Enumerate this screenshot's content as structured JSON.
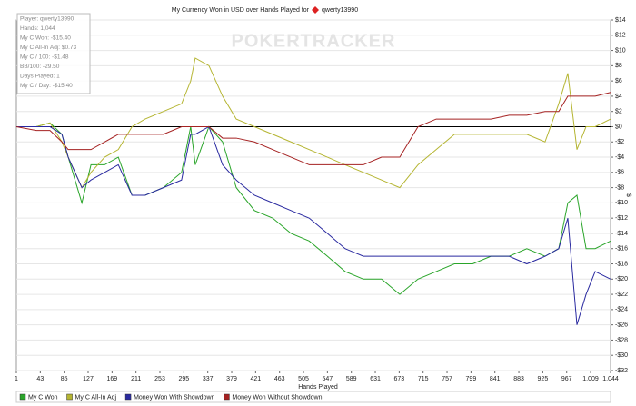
{
  "chart_data": {
    "type": "line",
    "title": "My Currency Won in USD over Hands Played for",
    "title_player": "qwerty13990",
    "watermark": "POKERTRACKER",
    "x_label": "Hands Played",
    "y_label": "$",
    "info_box": [
      "Player: qwerty13990",
      "Hands: 1,044",
      "My C Won: -$15.40",
      "My C All-In Adj: $0.73",
      "My C / 100: -$1.48",
      "BB/100: -29.50",
      "Days Played: 1",
      "My C / Day: -$15.40"
    ],
    "x": [
      1,
      36,
      60,
      81,
      92,
      116,
      132,
      156,
      180,
      204,
      227,
      259,
      291,
      307,
      315,
      339,
      363,
      387,
      419,
      451,
      483,
      515,
      547,
      578,
      610,
      642,
      674,
      706,
      738,
      770,
      802,
      834,
      866,
      897,
      929,
      953,
      969,
      985,
      1001,
      1017,
      1044
    ],
    "series": [
      {
        "name": "My C Won",
        "color": "#2aa52a",
        "values": [
          0,
          0,
          0.5,
          -1,
          -4,
          -10,
          -5,
          -5,
          -4,
          -9,
          -9,
          -8,
          -6,
          0,
          -5,
          0,
          -2,
          -8,
          -11,
          -12,
          -14,
          -15,
          -17,
          -19,
          -20,
          -20,
          -22,
          -20,
          -19,
          -18,
          -18,
          -17,
          -17,
          -16,
          -17,
          -16,
          -10,
          -9,
          -16,
          -16,
          -15
        ]
      },
      {
        "name": "My C All-In Adj",
        "color": "#b5b532",
        "values": [
          0,
          0,
          0.5,
          -2,
          -4,
          -8,
          -6,
          -4,
          -3,
          0,
          1,
          2,
          3,
          6,
          9,
          8,
          4,
          1,
          0,
          -1,
          -2,
          -3,
          -4,
          -5,
          -6,
          -7,
          -8,
          -5,
          -3,
          -1,
          -1,
          -1,
          -1,
          -1,
          -2,
          3,
          7,
          -3,
          0,
          0,
          1
        ]
      },
      {
        "name": "Money Won With Showdown",
        "color": "#2a2aa0",
        "values": [
          0,
          0,
          0,
          -1,
          -4,
          -8,
          -7,
          -6,
          -5,
          -9,
          -9,
          -8,
          -7,
          -1,
          -1,
          0,
          -5,
          -7,
          -9,
          -10,
          -11,
          -12,
          -14,
          -16,
          -17,
          -17,
          -17,
          -17,
          -17,
          -17,
          -17,
          -17,
          -17,
          -18,
          -17,
          -16,
          -12,
          -26,
          -22,
          -19,
          -20
        ]
      },
      {
        "name": "Money Won Without Showdown",
        "color": "#a52222",
        "values": [
          0,
          -0.5,
          -0.5,
          -2,
          -3,
          -3,
          -3,
          -2,
          -1,
          -1,
          -1,
          -1,
          0,
          0,
          0,
          0,
          -1.5,
          -1.5,
          -2,
          -3,
          -4,
          -5,
          -5,
          -5,
          -5,
          -4,
          -4,
          0,
          1,
          1,
          1,
          1,
          1.5,
          1.5,
          2,
          2,
          4,
          4,
          4,
          4,
          4.5
        ]
      }
    ],
    "xlim": [
      1,
      1044
    ],
    "xticks": [
      1,
      43,
      85,
      127,
      169,
      211,
      253,
      295,
      337,
      379,
      421,
      463,
      505,
      547,
      589,
      631,
      673,
      715,
      757,
      799,
      841,
      883,
      925,
      967,
      {
        "value": 1009,
        "label": "1,009"
      },
      {
        "value": 1044,
        "label": "1,044"
      }
    ],
    "ylim": [
      -32,
      14
    ],
    "yticks": [
      {
        "value": 14,
        "label": "$14"
      },
      {
        "value": 12,
        "label": "$12"
      },
      {
        "value": 10,
        "label": "$10"
      },
      {
        "value": 8,
        "label": "$8"
      },
      {
        "value": 6,
        "label": "$6"
      },
      {
        "value": 4,
        "label": "$4"
      },
      {
        "value": 2,
        "label": "$2"
      },
      {
        "value": 0,
        "label": "$0"
      },
      {
        "value": -2,
        "label": "-$2"
      },
      {
        "value": -4,
        "label": "-$4"
      },
      {
        "value": -6,
        "label": "-$6"
      },
      {
        "value": -8,
        "label": "-$8"
      },
      {
        "value": -10,
        "label": "-$10"
      },
      {
        "value": -12,
        "label": "-$12"
      },
      {
        "value": -14,
        "label": "-$14"
      },
      {
        "value": -16,
        "label": "-$16"
      },
      {
        "value": -18,
        "label": "-$18"
      },
      {
        "value": -20,
        "label": "-$20"
      },
      {
        "value": -22,
        "label": "-$22"
      },
      {
        "value": -24,
        "label": "-$24"
      },
      {
        "value": -26,
        "label": "-$26"
      },
      {
        "value": -28,
        "label": "-$28"
      },
      {
        "value": -30,
        "label": "-$30"
      },
      {
        "value": -32,
        "label": "-$32"
      }
    ],
    "grid": true
  }
}
